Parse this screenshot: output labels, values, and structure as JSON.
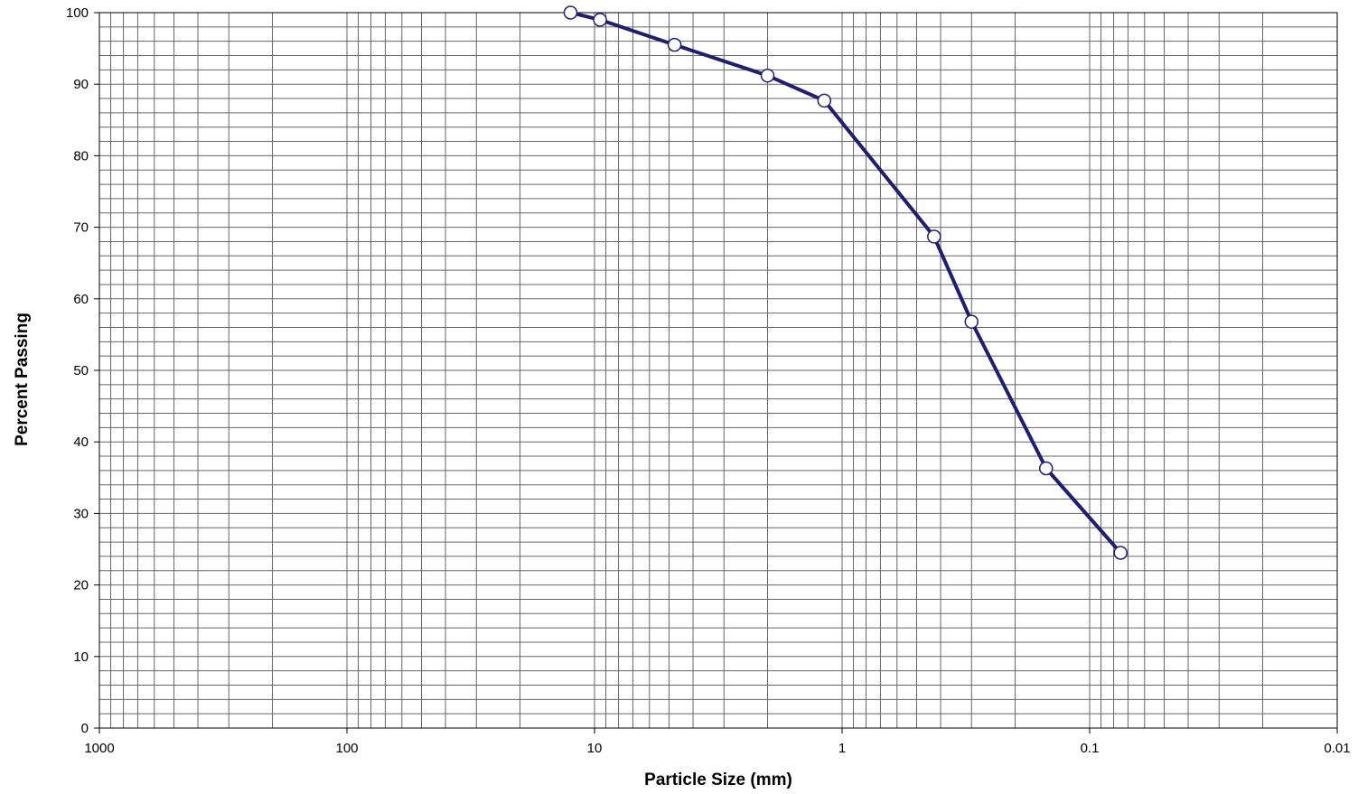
{
  "chart_data": {
    "type": "line",
    "title": "",
    "xlabel": "Particle Size (mm)",
    "ylabel": "Percent Passing",
    "x_scale": "log",
    "x_reversed": true,
    "xlim": [
      1000,
      0.01
    ],
    "ylim": [
      0,
      100
    ],
    "x_ticks": [
      "1000",
      "100",
      "10",
      "1",
      "0.1",
      "0.01"
    ],
    "y_ticks": [
      "0",
      "10",
      "20",
      "30",
      "40",
      "50",
      "60",
      "70",
      "80",
      "90",
      "100"
    ],
    "grid": true,
    "legend": "none",
    "series": [
      {
        "x": [
          12.5,
          9.5,
          4.75,
          2.0,
          1.18,
          0.425,
          0.3,
          0.15,
          0.075
        ],
        "y": [
          100,
          99,
          95.5,
          91.2,
          87.7,
          68.7,
          56.8,
          36.3,
          24.5
        ]
      }
    ]
  },
  "colors": {
    "series_line": "#1f1f6e",
    "marker_fill": "#ffffff",
    "grid": "#666666",
    "axis": "#000000"
  }
}
